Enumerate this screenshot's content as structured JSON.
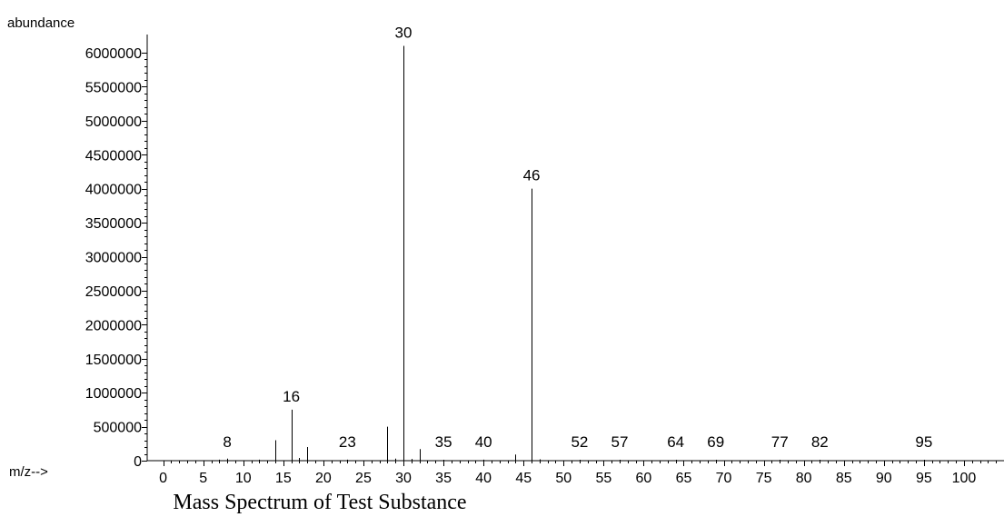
{
  "chart_data": {
    "type": "bar",
    "title": "Mass Spectrum of Test Substance",
    "ylabel": "abundance",
    "xlabel": "m/z-->",
    "xlim": [
      -2,
      105
    ],
    "ylim": [
      0,
      6100000
    ],
    "x_ticks": [
      0,
      5,
      10,
      15,
      20,
      25,
      30,
      35,
      40,
      45,
      50,
      55,
      60,
      65,
      70,
      75,
      80,
      85,
      90,
      95,
      100
    ],
    "x_tick_labels": [
      "0",
      "5",
      "10",
      "15",
      "20",
      "25",
      "30",
      "35",
      "40",
      "45",
      "50",
      "55",
      "60",
      "65",
      "70",
      "75",
      "80",
      "85",
      "90",
      "95",
      "100"
    ],
    "y_ticks": [
      0,
      500000,
      1000000,
      1500000,
      2000000,
      2500000,
      3000000,
      3500000,
      4000000,
      4500000,
      5000000,
      5500000,
      6000000
    ],
    "y_tick_labels": [
      "0",
      "500000",
      "1000000",
      "1500000",
      "2000000",
      "2500000",
      "3000000",
      "3500000",
      "4000000",
      "4500000",
      "5000000",
      "5500000",
      "6000000"
    ],
    "peaks": [
      {
        "x": 7,
        "y": 15000
      },
      {
        "x": 8,
        "y": 30000,
        "label": "8"
      },
      {
        "x": 12,
        "y": 15000
      },
      {
        "x": 14,
        "y": 300000
      },
      {
        "x": 16,
        "y": 750000,
        "label": "16"
      },
      {
        "x": 17,
        "y": 40000
      },
      {
        "x": 18,
        "y": 200000
      },
      {
        "x": 23,
        "y": 15000,
        "label": "23"
      },
      {
        "x": 28,
        "y": 500000
      },
      {
        "x": 29,
        "y": 30000
      },
      {
        "x": 30,
        "y": 6100000,
        "label": "30"
      },
      {
        "x": 31,
        "y": 25000
      },
      {
        "x": 32,
        "y": 170000
      },
      {
        "x": 35,
        "y": 10000,
        "label": "35"
      },
      {
        "x": 40,
        "y": 15000,
        "label": "40"
      },
      {
        "x": 44,
        "y": 90000
      },
      {
        "x": 46,
        "y": 4000000,
        "label": "46"
      },
      {
        "x": 47,
        "y": 20000
      },
      {
        "x": 52,
        "y": 8000,
        "label": "52"
      },
      {
        "x": 57,
        "y": 8000,
        "label": "57"
      },
      {
        "x": 64,
        "y": 8000,
        "label": "64"
      },
      {
        "x": 69,
        "y": 8000,
        "label": "69"
      },
      {
        "x": 77,
        "y": 8000,
        "label": "77"
      },
      {
        "x": 82,
        "y": 8000,
        "label": "82"
      },
      {
        "x": 95,
        "y": 8000,
        "label": "95"
      }
    ],
    "grid": false,
    "color": "#000000"
  }
}
